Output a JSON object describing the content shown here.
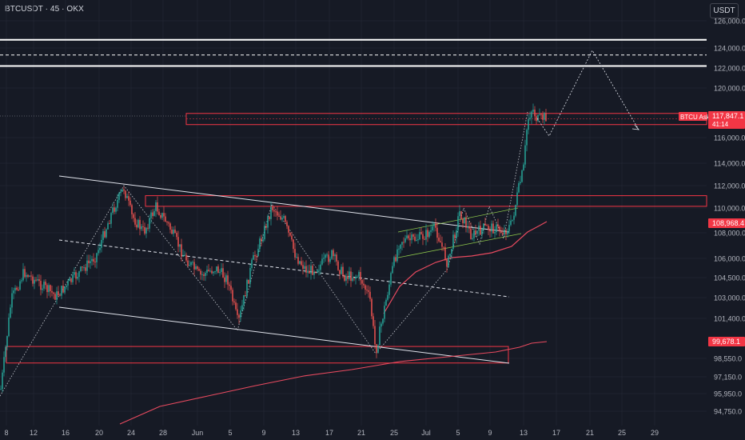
{
  "header": {
    "title": "BTCUSDT · 45 · OKX",
    "currency": "USDT"
  },
  "chart_data": {
    "type": "candlestick",
    "symbol": "BTCUSDT",
    "interval": "45",
    "exchange": "OKX",
    "y_ticks": [
      "126,000.0",
      "124,000.0",
      "122,000.0",
      "120,000.0",
      "116,000.0",
      "114,000.0",
      "112,000.0",
      "110,000.0",
      "108,000.0",
      "106,000.0",
      "104,500.0",
      "103,000.0",
      "101,400.0",
      "98,550.0",
      "97,150.0",
      "95,950.0",
      "94,750.0"
    ],
    "x_ticks": [
      "8",
      "12",
      "16",
      "20",
      "24",
      "28",
      "Jun",
      "5",
      "9",
      "13",
      "17",
      "21",
      "25",
      "Jul",
      "5",
      "9",
      "13",
      "17",
      "21",
      "25",
      "29"
    ],
    "price_labels": {
      "last": "117,847.1",
      "countdown": "41:14",
      "ask_label": "BTCU Ask",
      "ma_fast": "108,968.4",
      "ma_slow": "99,678.1"
    },
    "colors": {
      "up": "#26a69a",
      "down": "#ef5350",
      "zones": "#f23645",
      "ma": "#e84a5f",
      "lines": "#ffffff",
      "channel": "#8bc34a"
    },
    "levels": [
      124600,
      123300,
      122200
    ],
    "zones": [
      [
        117950,
        117050
      ],
      [
        111100,
        110150
      ],
      [
        99400,
        98200
      ]
    ]
  }
}
